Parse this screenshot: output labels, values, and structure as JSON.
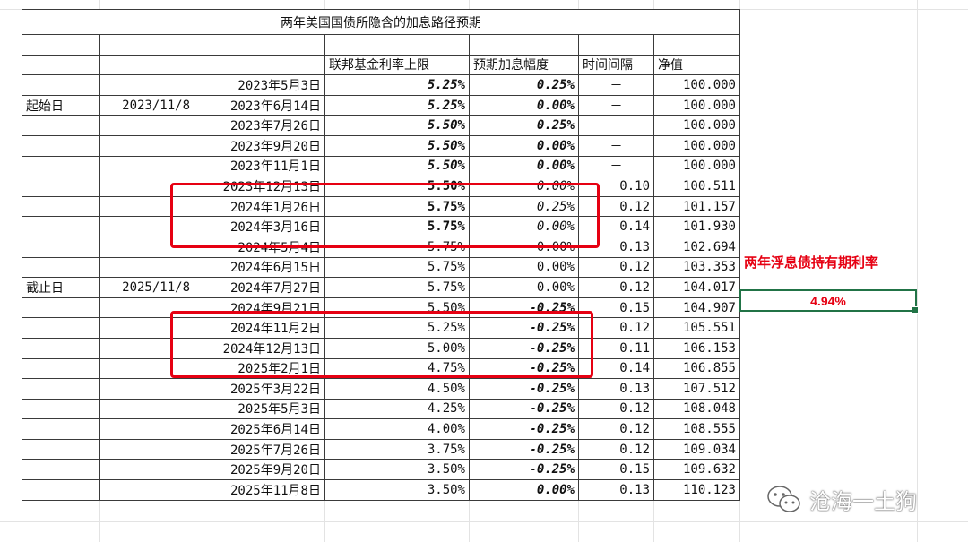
{
  "title": "两年美国国债所隐含的加息路径预期",
  "headers": {
    "rate_cap": "联邦基金利率上限",
    "expected_hike": "预期加息幅度",
    "interval": "时间间隔",
    "nav": "净值"
  },
  "start": {
    "label": "起始日",
    "date": "2023/11/8"
  },
  "end": {
    "label": "截止日",
    "date": "2025/11/8"
  },
  "rows": [
    {
      "date": "2023年5月3日",
      "rate": "5.25%",
      "hike": "0.25%",
      "interval": "－",
      "nav": "100.000"
    },
    {
      "date": "2023年6月14日",
      "rate": "5.25%",
      "hike": "0.00%",
      "interval": "－",
      "nav": "100.000"
    },
    {
      "date": "2023年7月26日",
      "rate": "5.50%",
      "hike": "0.25%",
      "interval": "－",
      "nav": "100.000"
    },
    {
      "date": "2023年9月20日",
      "rate": "5.50%",
      "hike": "0.00%",
      "interval": "－",
      "nav": "100.000"
    },
    {
      "date": "2023年11月1日",
      "rate": "5.50%",
      "hike": "0.00%",
      "interval": "－",
      "nav": "100.000"
    },
    {
      "date": "2023年12月13日",
      "rate": "5.50%",
      "hike": "0.00%",
      "interval": "0.10",
      "nav": "100.511"
    },
    {
      "date": "2024年1月26日",
      "rate": "5.75%",
      "hike": "0.25%",
      "interval": "0.12",
      "nav": "101.157"
    },
    {
      "date": "2024年3月16日",
      "rate": "5.75%",
      "hike": "0.00%",
      "interval": "0.14",
      "nav": "101.930"
    },
    {
      "date": "2024年5月4日",
      "rate": "5.75%",
      "hike": "0.00%",
      "interval": "0.13",
      "nav": "102.694"
    },
    {
      "date": "2024年6月15日",
      "rate": "5.75%",
      "hike": "0.00%",
      "interval": "0.12",
      "nav": "103.353"
    },
    {
      "date": "2024年7月27日",
      "rate": "5.75%",
      "hike": "0.00%",
      "interval": "0.12",
      "nav": "104.017"
    },
    {
      "date": "2024年9月21日",
      "rate": "5.50%",
      "hike": "-0.25%",
      "interval": "0.15",
      "nav": "104.907"
    },
    {
      "date": "2024年11月2日",
      "rate": "5.25%",
      "hike": "-0.25%",
      "interval": "0.12",
      "nav": "105.551"
    },
    {
      "date": "2024年12月13日",
      "rate": "5.00%",
      "hike": "-0.25%",
      "interval": "0.11",
      "nav": "106.153"
    },
    {
      "date": "2025年2月1日",
      "rate": "4.75%",
      "hike": "-0.25%",
      "interval": "0.14",
      "nav": "106.855"
    },
    {
      "date": "2025年3月22日",
      "rate": "4.50%",
      "hike": "-0.25%",
      "interval": "0.13",
      "nav": "107.512"
    },
    {
      "date": "2025年5月3日",
      "rate": "4.25%",
      "hike": "-0.25%",
      "interval": "0.12",
      "nav": "108.048"
    },
    {
      "date": "2025年6月14日",
      "rate": "4.00%",
      "hike": "-0.25%",
      "interval": "0.12",
      "nav": "108.555"
    },
    {
      "date": "2025年7月26日",
      "rate": "3.75%",
      "hike": "-0.25%",
      "interval": "0.12",
      "nav": "109.034"
    },
    {
      "date": "2025年9月20日",
      "rate": "3.50%",
      "hike": "-0.25%",
      "interval": "0.15",
      "nav": "109.632"
    },
    {
      "date": "2025年11月8日",
      "rate": "3.50%",
      "hike": "0.00%",
      "interval": "0.13",
      "nav": "110.123"
    }
  ],
  "side": {
    "label": "两年浮息债持有期利率",
    "value": "4.94%"
  },
  "watermark": {
    "text": "沧海一土狗",
    "icon": "wechat-icon"
  },
  "colors": {
    "purple": "#7c3aa3",
    "red": "#e60012",
    "green": "#1e9e3e",
    "selection": "#217346"
  }
}
